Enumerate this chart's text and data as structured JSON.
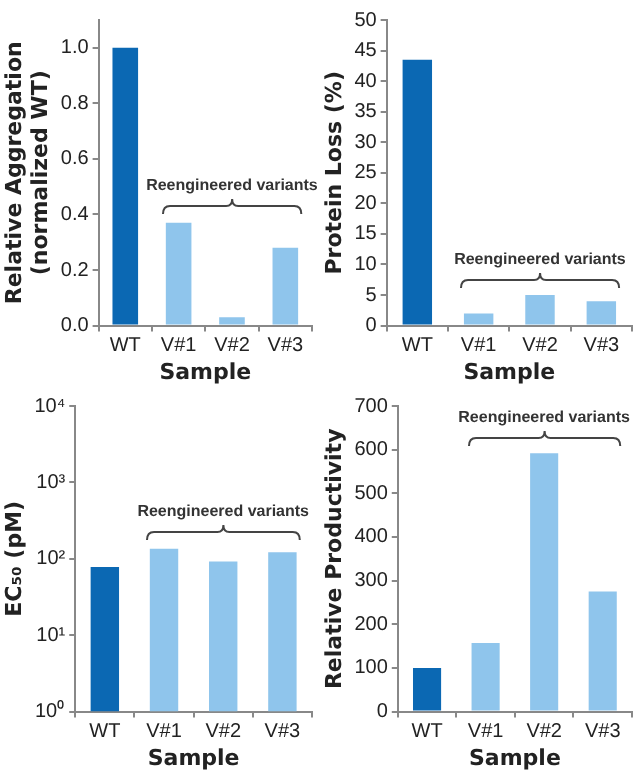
{
  "chart_data": [
    {
      "type": "bar",
      "categories": [
        "WT",
        "V#1",
        "V#2",
        "V#3"
      ],
      "values": [
        1.0,
        0.37,
        0.03,
        0.28
      ],
      "colors": [
        "#0b68b3",
        "#8fc5ec",
        "#8fc5ec",
        "#8fc5ec"
      ],
      "xlabel": "Sample",
      "ylabel": "Relative Aggregation\n(normalized WT)",
      "ylim": [
        0,
        1.1
      ],
      "yticks": [
        {
          "value": 0,
          "label": "0.0"
        },
        0.2,
        0.4,
        0.6,
        0.8,
        {
          "value": 1,
          "label": "1.0"
        }
      ],
      "annotations": [
        "Reengineered variants"
      ]
    },
    {
      "type": "bar",
      "categories": [
        "WT",
        "V#1",
        "V#2",
        "V#3"
      ],
      "values": [
        43.5,
        2,
        5,
        4
      ],
      "colors": [
        "#0b68b3",
        "#8fc5ec",
        "#8fc5ec",
        "#8fc5ec"
      ],
      "xlabel": "Sample",
      "ylabel": "Protein Loss (%)",
      "ylim": [
        0,
        50
      ],
      "yticks": [
        0,
        5,
        10,
        15,
        20,
        25,
        30,
        35,
        40,
        45,
        50
      ],
      "annotations": [
        "Reengineered variants"
      ]
    },
    {
      "type": "bar",
      "categories": [
        "WT",
        "V#1",
        "V#2",
        "V#3"
      ],
      "values": [
        78,
        135,
        92,
        122
      ],
      "colors": [
        "#0b68b3",
        "#8fc5ec",
        "#8fc5ec",
        "#8fc5ec"
      ],
      "xlabel": "Sample",
      "ylabel": "EC₅₀ (pM)",
      "log": "y",
      "ylim": [
        1,
        10000
      ],
      "yticks": [
        {
          "value": 1,
          "label": "10⁰"
        },
        {
          "value": 10,
          "label": "10¹"
        },
        {
          "value": 100,
          "label": "10²"
        },
        {
          "value": 1000,
          "label": "10³"
        },
        {
          "value": 10000,
          "label": "10⁴"
        }
      ],
      "annotations": [
        "Reengineered variants"
      ]
    },
    {
      "type": "bar",
      "categories": [
        "WT",
        "V#1",
        "V#2",
        "V#3"
      ],
      "values": [
        100,
        157,
        592,
        275
      ],
      "colors": [
        "#0b68b3",
        "#8fc5ec",
        "#8fc5ec",
        "#8fc5ec"
      ],
      "xlabel": "Sample",
      "ylabel": "Relative Productivity",
      "ylim": [
        0,
        700
      ],
      "yticks": [
        0,
        100,
        200,
        300,
        400,
        500,
        600,
        700
      ],
      "annotations": [
        "Reengineered variants"
      ]
    }
  ]
}
